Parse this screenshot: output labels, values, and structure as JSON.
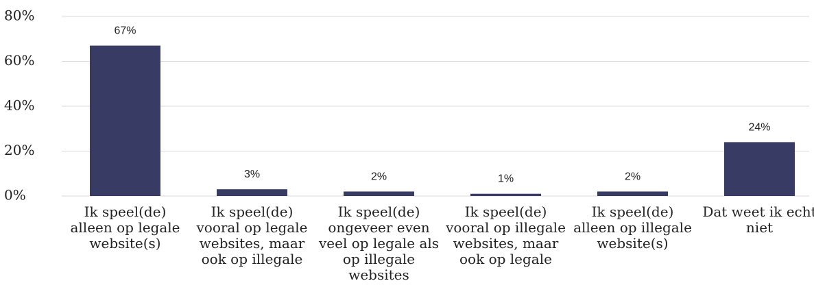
{
  "chart_data": {
    "type": "bar",
    "categories": [
      "Ik speel(de) alleen op legale website(s)",
      "Ik speel(de) vooral op legale websites, maar ook op illegale",
      "Ik speel(de) ongeveer even veel op legale als op illegale websites",
      "Ik speel(de) vooral op illegale websites, maar ook op legale",
      "Ik speel(de) alleen op illegale website(s)",
      "Dat weet ik echt niet"
    ],
    "values": [
      67,
      3,
      2,
      1,
      2,
      24
    ],
    "value_labels": [
      "67%",
      "3%",
      "2%",
      "1%",
      "2%",
      "24%"
    ],
    "color": "#383c65",
    "ylim": [
      0,
      80
    ],
    "yticks": [
      {
        "value": 0,
        "label": "0%"
      },
      {
        "value": 20,
        "label": "20%"
      },
      {
        "value": 40,
        "label": "40%"
      },
      {
        "value": 60,
        "label": "60%"
      },
      {
        "value": 80,
        "label": "80%"
      }
    ],
    "grid": true
  }
}
